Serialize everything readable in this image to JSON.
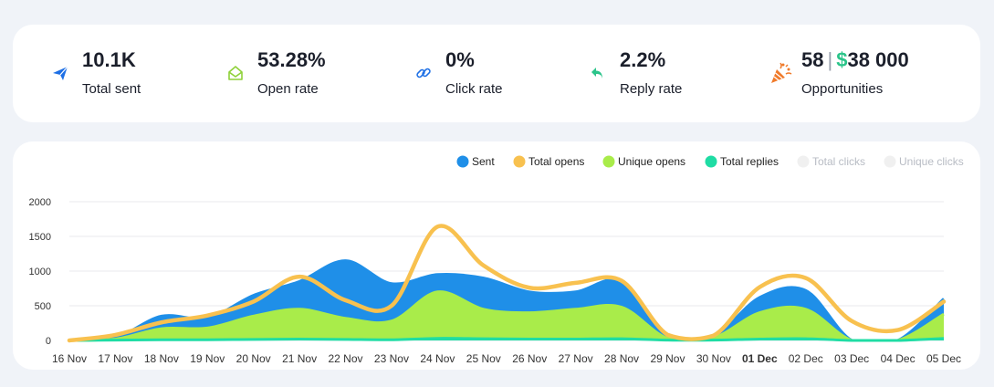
{
  "stats": [
    {
      "value": "10.1K",
      "label": "Total sent",
      "icon": "paper-plane-icon",
      "color": "#1d6fe5"
    },
    {
      "value": "53.28%",
      "label": "Open rate",
      "icon": "open-envelope-icon",
      "color": "#8fd13a"
    },
    {
      "value": "0%",
      "label": "Click rate",
      "icon": "link-icon",
      "color": "#1d6fe5"
    },
    {
      "value": "2.2%",
      "label": "Reply rate",
      "icon": "reply-arrow-icon",
      "color": "#2bc48a"
    },
    {
      "value_count": "58",
      "value_sep": "|",
      "value_currency": "$",
      "value_amount": "38 000",
      "label": "Opportunities",
      "icon": "party-popper-icon",
      "color": "#f07a2a"
    }
  ],
  "chart_data": {
    "type": "area",
    "categories": [
      "16 Nov",
      "17 Nov",
      "18 Nov",
      "19 Nov",
      "20 Nov",
      "21 Nov",
      "22 Nov",
      "23 Nov",
      "24 Nov",
      "25 Nov",
      "26 Nov",
      "27 Nov",
      "28 Nov",
      "29 Nov",
      "30 Nov",
      "01 Dec",
      "02 Dec",
      "03 Dec",
      "04 Dec",
      "05 Dec"
    ],
    "bold_category": "01 Dec",
    "ylim": [
      0,
      2000
    ],
    "yticks": [
      "0",
      "500",
      "1000",
      "1500",
      "2000"
    ],
    "legend": [
      {
        "name": "Sent",
        "color": "#1f8fe8",
        "active": true
      },
      {
        "name": "Total opens",
        "color": "#f8c14f",
        "active": true
      },
      {
        "name": "Unique opens",
        "color": "#a9ec4a",
        "active": true
      },
      {
        "name": "Total replies",
        "color": "#1fdca4",
        "active": true
      },
      {
        "name": "Total clicks",
        "color": "#f0f0f0",
        "active": false
      },
      {
        "name": "Unique clicks",
        "color": "#f0f0f0",
        "active": false
      }
    ],
    "series": [
      {
        "name": "Sent",
        "type": "area",
        "values": [
          0,
          40,
          350,
          320,
          650,
          850,
          1150,
          820,
          950,
          900,
          700,
          700,
          850,
          50,
          60,
          620,
          720,
          0,
          0,
          600
        ]
      },
      {
        "name": "Unique opens",
        "type": "area",
        "values": [
          0,
          20,
          170,
          180,
          350,
          450,
          320,
          280,
          700,
          450,
          400,
          450,
          480,
          30,
          40,
          400,
          450,
          0,
          0,
          380
        ]
      },
      {
        "name": "Total replies",
        "type": "area",
        "values": [
          0,
          5,
          10,
          10,
          15,
          20,
          15,
          10,
          30,
          25,
          20,
          20,
          25,
          5,
          5,
          20,
          25,
          0,
          0,
          30
        ]
      },
      {
        "name": "Total opens",
        "type": "line",
        "values": [
          0,
          80,
          260,
          360,
          560,
          920,
          580,
          500,
          1640,
          1080,
          760,
          830,
          860,
          80,
          70,
          770,
          900,
          280,
          150,
          560
        ]
      }
    ]
  }
}
